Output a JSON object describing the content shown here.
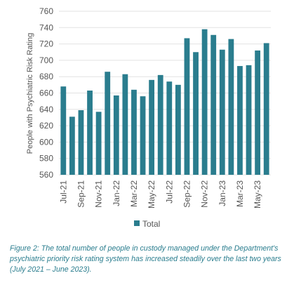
{
  "chart_data": {
    "type": "bar",
    "ylabel": "People with Psychiatric Risk Rating",
    "xlabel": "",
    "ylim": [
      560,
      760
    ],
    "yticks": [
      560,
      580,
      600,
      620,
      640,
      660,
      680,
      700,
      720,
      740,
      760
    ],
    "categories": [
      "Jul-21",
      "Aug-21",
      "Sep-21",
      "Oct-21",
      "Nov-21",
      "Dec-21",
      "Jan-22",
      "Feb-22",
      "Mar-22",
      "Apr-22",
      "May-22",
      "Jun-22",
      "Jul-22",
      "Aug-22",
      "Sep-22",
      "Oct-22",
      "Nov-22",
      "Dec-22",
      "Jan-23",
      "Feb-23",
      "Mar-23",
      "Apr-23",
      "May-23",
      "Jun-23"
    ],
    "xtick_labels": [
      "Jul-21",
      "",
      "Sep-21",
      "",
      "Nov-21",
      "",
      "Jan-22",
      "",
      "Mar-22",
      "",
      "May-22",
      "",
      "Jul-22",
      "",
      "Sep-22",
      "",
      "Nov-22",
      "",
      "Jan-23",
      "",
      "Mar-23",
      "",
      "May-23",
      ""
    ],
    "series": [
      {
        "name": "Total",
        "color": "#2a7d8e",
        "values": [
          668,
          631,
          639,
          663,
          637,
          686,
          657,
          683,
          664,
          656,
          676,
          682,
          674,
          670,
          727,
          710,
          738,
          731,
          713,
          726,
          693,
          694,
          712,
          721
        ]
      }
    ],
    "legend_position": "bottom",
    "grid": true
  },
  "caption": "Figure 2: The total number of people in custody managed under the Department's psychiatric priority risk rating system has increased steadily over the last two years (July 2021 – June 2023)."
}
